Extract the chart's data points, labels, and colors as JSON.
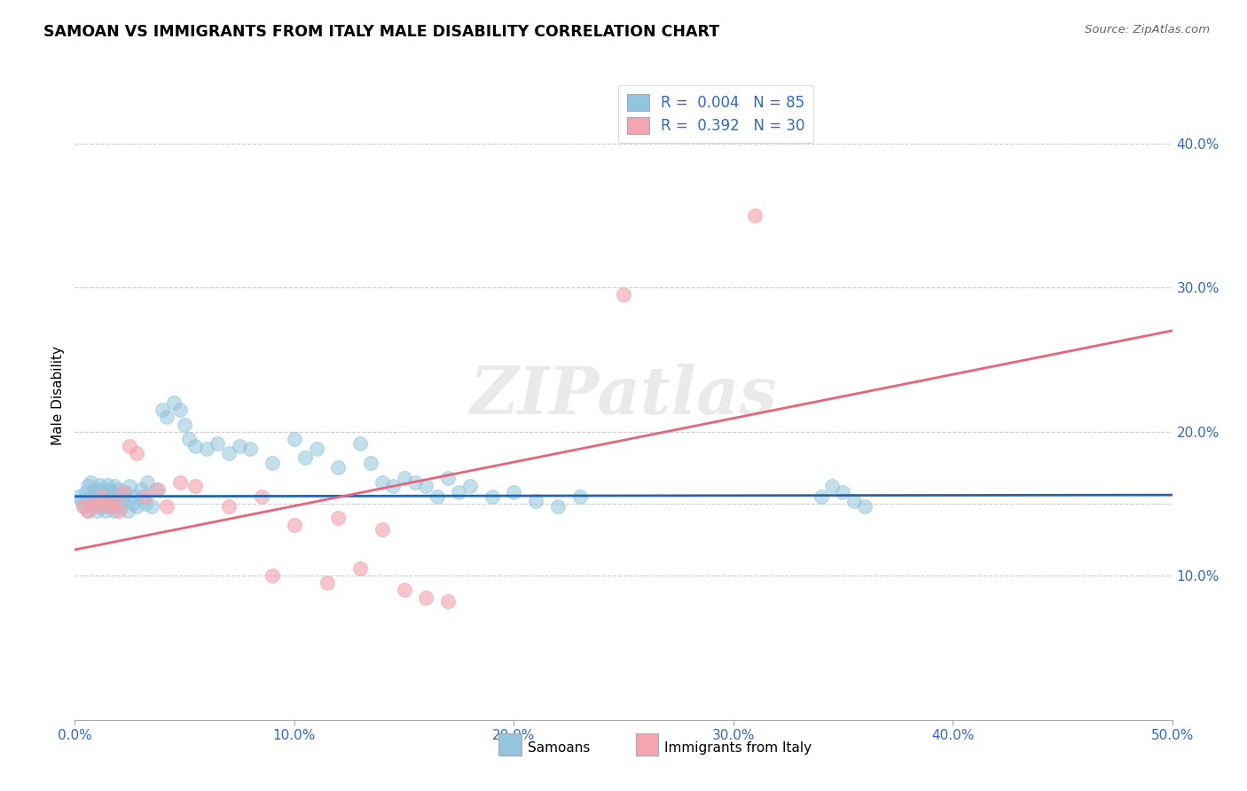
{
  "title": "SAMOAN VS IMMIGRANTS FROM ITALY MALE DISABILITY CORRELATION CHART",
  "source": "Source: ZipAtlas.com",
  "ylabel": "Male Disability",
  "xlim": [
    0.0,
    0.5
  ],
  "ylim": [
    0.0,
    0.45
  ],
  "xticks": [
    0.0,
    0.1,
    0.2,
    0.3,
    0.4,
    0.5
  ],
  "yticks_right": [
    0.1,
    0.2,
    0.3,
    0.4
  ],
  "ytick_labels_right": [
    "10.0%",
    "20.0%",
    "30.0%",
    "40.0%"
  ],
  "xtick_labels": [
    "0.0%",
    "10.0%",
    "20.0%",
    "30.0%",
    "40.0%",
    "50.0%"
  ],
  "grid_yticks": [
    0.1,
    0.15,
    0.2,
    0.3,
    0.4
  ],
  "blue_color": "#92C5DE",
  "pink_color": "#F4A6B0",
  "blue_line_color": "#2166AC",
  "pink_line_color": "#E8647A",
  "legend_R1": "R = 0.004",
  "legend_N1": "N = 85",
  "legend_R2": "R = 0.392",
  "legend_N2": "N = 30",
  "watermark": "ZIPatlas",
  "blue_line_x": [
    0.0,
    0.5
  ],
  "blue_line_y": [
    0.155,
    0.156
  ],
  "pink_line_x": [
    0.0,
    0.5
  ],
  "pink_line_y": [
    0.118,
    0.27
  ],
  "samoans_x": [
    0.002,
    0.003,
    0.004,
    0.005,
    0.006,
    0.006,
    0.007,
    0.007,
    0.008,
    0.008,
    0.009,
    0.009,
    0.01,
    0.01,
    0.011,
    0.011,
    0.012,
    0.012,
    0.013,
    0.013,
    0.014,
    0.014,
    0.015,
    0.015,
    0.016,
    0.016,
    0.017,
    0.017,
    0.018,
    0.018,
    0.019,
    0.02,
    0.02,
    0.021,
    0.022,
    0.023,
    0.024,
    0.025,
    0.026,
    0.027,
    0.028,
    0.03,
    0.031,
    0.032,
    0.033,
    0.035,
    0.037,
    0.04,
    0.042,
    0.045,
    0.048,
    0.05,
    0.052,
    0.055,
    0.06,
    0.065,
    0.07,
    0.075,
    0.08,
    0.09,
    0.1,
    0.105,
    0.11,
    0.12,
    0.13,
    0.135,
    0.14,
    0.145,
    0.15,
    0.155,
    0.16,
    0.165,
    0.17,
    0.175,
    0.18,
    0.19,
    0.2,
    0.21,
    0.22,
    0.23,
    0.34,
    0.345,
    0.35,
    0.355,
    0.36
  ],
  "samoans_y": [
    0.155,
    0.152,
    0.148,
    0.158,
    0.145,
    0.162,
    0.15,
    0.165,
    0.148,
    0.155,
    0.152,
    0.16,
    0.145,
    0.158,
    0.155,
    0.163,
    0.148,
    0.16,
    0.155,
    0.152,
    0.158,
    0.145,
    0.163,
    0.148,
    0.16,
    0.155,
    0.15,
    0.158,
    0.145,
    0.162,
    0.148,
    0.155,
    0.16,
    0.148,
    0.153,
    0.158,
    0.145,
    0.162,
    0.15,
    0.155,
    0.148,
    0.16,
    0.155,
    0.15,
    0.165,
    0.148,
    0.16,
    0.215,
    0.21,
    0.22,
    0.215,
    0.205,
    0.195,
    0.19,
    0.188,
    0.192,
    0.185,
    0.19,
    0.188,
    0.178,
    0.195,
    0.182,
    0.188,
    0.175,
    0.192,
    0.178,
    0.165,
    0.162,
    0.168,
    0.165,
    0.162,
    0.155,
    0.168,
    0.158,
    0.162,
    0.155,
    0.158,
    0.152,
    0.148,
    0.155,
    0.155,
    0.162,
    0.158,
    0.152,
    0.148
  ],
  "italy_x": [
    0.004,
    0.006,
    0.008,
    0.01,
    0.012,
    0.014,
    0.016,
    0.018,
    0.02,
    0.022,
    0.025,
    0.028,
    0.032,
    0.038,
    0.042,
    0.048,
    0.055,
    0.07,
    0.085,
    0.09,
    0.1,
    0.115,
    0.12,
    0.13,
    0.14,
    0.15,
    0.16,
    0.17,
    0.25,
    0.31
  ],
  "italy_y": [
    0.148,
    0.145,
    0.152,
    0.148,
    0.155,
    0.15,
    0.148,
    0.152,
    0.145,
    0.158,
    0.19,
    0.185,
    0.155,
    0.16,
    0.148,
    0.165,
    0.162,
    0.148,
    0.155,
    0.1,
    0.135,
    0.095,
    0.14,
    0.105,
    0.132,
    0.09,
    0.085,
    0.082,
    0.295,
    0.35
  ]
}
